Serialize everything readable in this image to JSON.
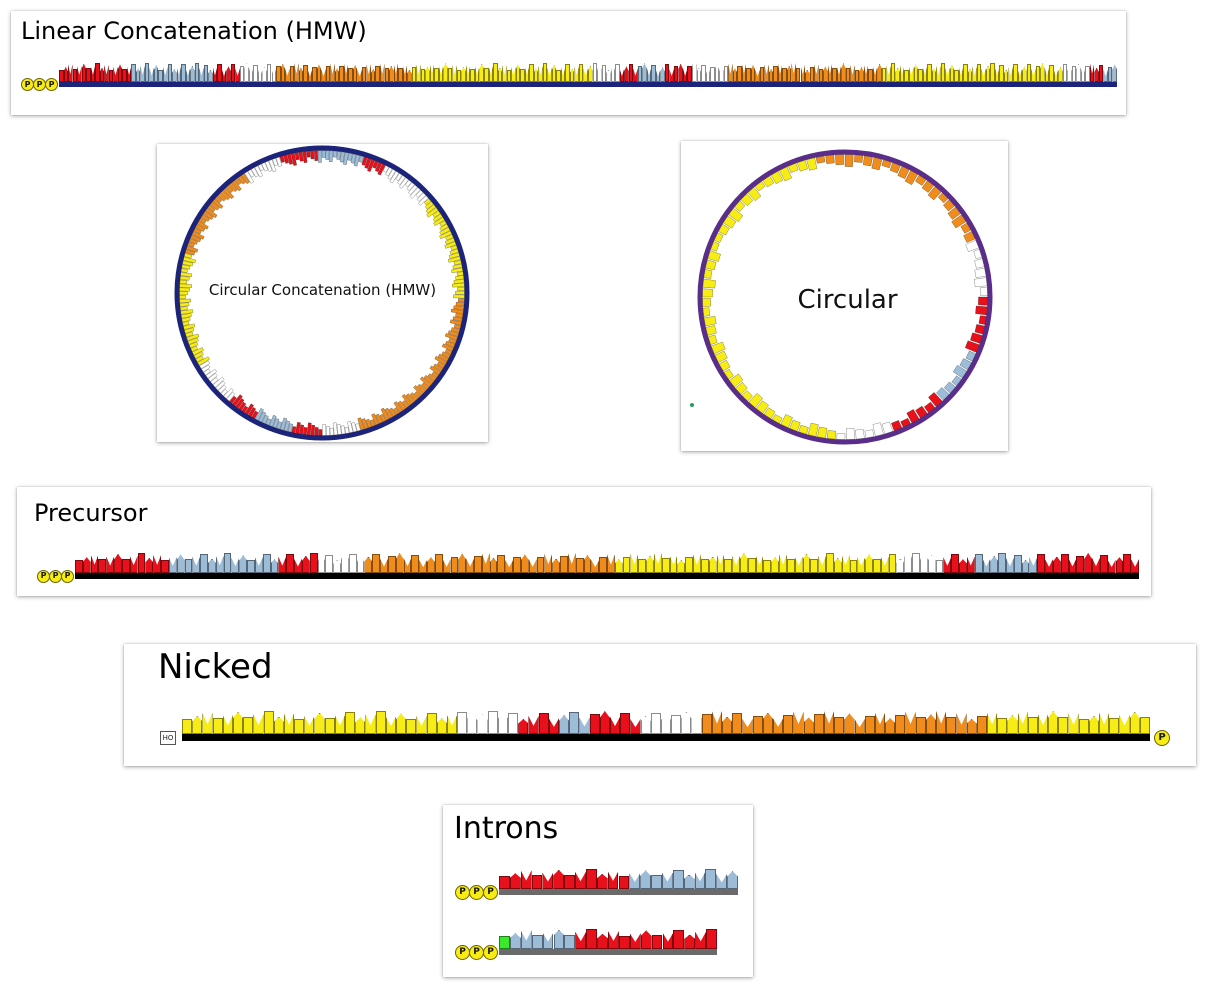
{
  "colors": {
    "red": "#e8101a",
    "blue": "#9cbcd8",
    "blue2": "#a7bcd4",
    "white": "#ffffff",
    "orange": "#f08c1c",
    "yellow": "#f7ec15",
    "green": "#3aea2a",
    "navy": "#1b237a",
    "purple": "#5a2d8a",
    "black": "#000000",
    "gray": "#6a6a6a",
    "phosphate": "#f7ec15"
  },
  "panels": {
    "linear_hmw": {
      "title": "Linear Concatenation (HMW)",
      "five_prime": [
        "P",
        "P",
        "P"
      ],
      "segments": [
        {
          "c": "red",
          "n": 16
        },
        {
          "c": "blue",
          "n": 18
        },
        {
          "c": "red",
          "n": 6
        },
        {
          "c": "white",
          "n": 8
        },
        {
          "c": "orange",
          "n": 30
        },
        {
          "c": "yellow",
          "n": 40
        },
        {
          "c": "white",
          "n": 6
        },
        {
          "c": "red",
          "n": 4
        },
        {
          "c": "blue",
          "n": 6
        },
        {
          "c": "red",
          "n": 6
        },
        {
          "c": "white",
          "n": 8
        },
        {
          "c": "orange",
          "n": 34
        },
        {
          "c": "yellow",
          "n": 40
        },
        {
          "c": "white",
          "n": 6
        },
        {
          "c": "red",
          "n": 3
        },
        {
          "c": "blue",
          "n": 3
        }
      ]
    },
    "circular_hmw": {
      "label": "Circular Concatenation (HMW)",
      "segments": [
        {
          "c": "red",
          "n": 10
        },
        {
          "c": "blue",
          "n": 12
        },
        {
          "c": "red",
          "n": 6
        },
        {
          "c": "white",
          "n": 14
        },
        {
          "c": "yellow",
          "n": 28
        },
        {
          "c": "orange",
          "n": 24
        },
        {
          "c": "orange",
          "n": 22
        },
        {
          "c": "white",
          "n": 10
        },
        {
          "c": "red",
          "n": 8
        },
        {
          "c": "blue",
          "n": 10
        },
        {
          "c": "red",
          "n": 8
        },
        {
          "c": "white",
          "n": 12
        },
        {
          "c": "yellow",
          "n": 30
        },
        {
          "c": "orange",
          "n": 26
        },
        {
          "c": "white",
          "n": 10
        }
      ]
    },
    "circular": {
      "label": "Circular",
      "segments": [
        {
          "c": "yellow",
          "n": 14
        },
        {
          "c": "orange",
          "n": 20
        },
        {
          "c": "white",
          "n": 6
        },
        {
          "c": "red",
          "n": 6
        },
        {
          "c": "blue",
          "n": 6
        },
        {
          "c": "red",
          "n": 6
        },
        {
          "c": "white",
          "n": 6
        },
        {
          "c": "yellow",
          "n": 22
        },
        {
          "c": "yellow",
          "n": 6
        }
      ]
    },
    "precursor": {
      "title": "Precursor",
      "five_prime": [
        "P",
        "P",
        "P"
      ],
      "segments": [
        {
          "c": "red",
          "n": 12
        },
        {
          "c": "blue",
          "n": 14
        },
        {
          "c": "red",
          "n": 5
        },
        {
          "c": "white",
          "n": 6
        },
        {
          "c": "orange",
          "n": 32
        },
        {
          "c": "yellow",
          "n": 36
        },
        {
          "c": "white",
          "n": 6
        },
        {
          "c": "red",
          "n": 4
        },
        {
          "c": "blue",
          "n": 8
        },
        {
          "c": "red",
          "n": 13
        }
      ]
    },
    "nicked": {
      "title": "Nicked",
      "five_prime_label": "HO",
      "three_prime": "P",
      "segments": [
        {
          "c": "yellow",
          "n": 27
        },
        {
          "c": "white",
          "n": 6
        },
        {
          "c": "red",
          "n": 4
        },
        {
          "c": "blue",
          "n": 3
        },
        {
          "c": "red",
          "n": 5
        },
        {
          "c": "white",
          "n": 6
        },
        {
          "c": "orange",
          "n": 28
        },
        {
          "c": "yellow",
          "n": 16
        }
      ]
    },
    "introns": {
      "title": "Introns",
      "rows": [
        {
          "five_prime": [
            "P",
            "P",
            "P"
          ],
          "segments": [
            {
              "c": "red",
              "n": 12
            },
            {
              "c": "blue",
              "n": 10
            }
          ]
        },
        {
          "five_prime": [
            "P",
            "P",
            "P"
          ],
          "segments": [
            {
              "c": "green",
              "n": 1
            },
            {
              "c": "blue",
              "n": 6
            },
            {
              "c": "red",
              "n": 13
            }
          ]
        }
      ]
    }
  }
}
